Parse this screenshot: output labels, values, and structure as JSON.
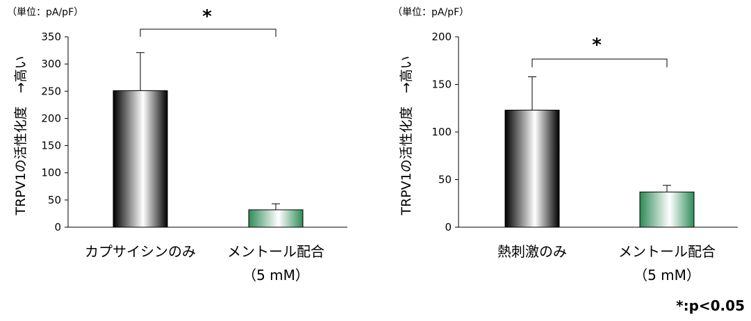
{
  "colors": {
    "bar_black": "#000000",
    "bar_green": "#2e8b57",
    "axis": "#000000"
  },
  "footnote": "*:p<0.05",
  "chart_data": [
    {
      "type": "bar",
      "unit_label": "（単位：pA/pF）",
      "ylabel": "TRPV1の活性化度　→高い",
      "ylim": [
        0,
        350
      ],
      "yticks": [
        0,
        50,
        100,
        150,
        200,
        250,
        300,
        350
      ],
      "categories": [
        {
          "line1": "カプサイシンのみ",
          "line2": ""
        },
        {
          "line1": "メントール配合",
          "line2": "（5 mM）"
        }
      ],
      "values": [
        251,
        32
      ],
      "errors": [
        70,
        11
      ],
      "bar_colors": [
        "black",
        "green"
      ],
      "significance": {
        "between": [
          0,
          1
        ],
        "label": "*"
      }
    },
    {
      "type": "bar",
      "unit_label": "（単位：pA/pF）",
      "ylabel": "TRPV1の活性化度　→高い",
      "ylim": [
        0,
        200
      ],
      "yticks": [
        0,
        50,
        100,
        150,
        200
      ],
      "categories": [
        {
          "line1": "熱刺激のみ",
          "line2": ""
        },
        {
          "line1": "メントール配合",
          "line2": "（5 mM）"
        }
      ],
      "values": [
        123,
        37
      ],
      "errors": [
        35,
        7
      ],
      "bar_colors": [
        "black",
        "green"
      ],
      "significance": {
        "between": [
          0,
          1
        ],
        "label": "*"
      }
    }
  ]
}
